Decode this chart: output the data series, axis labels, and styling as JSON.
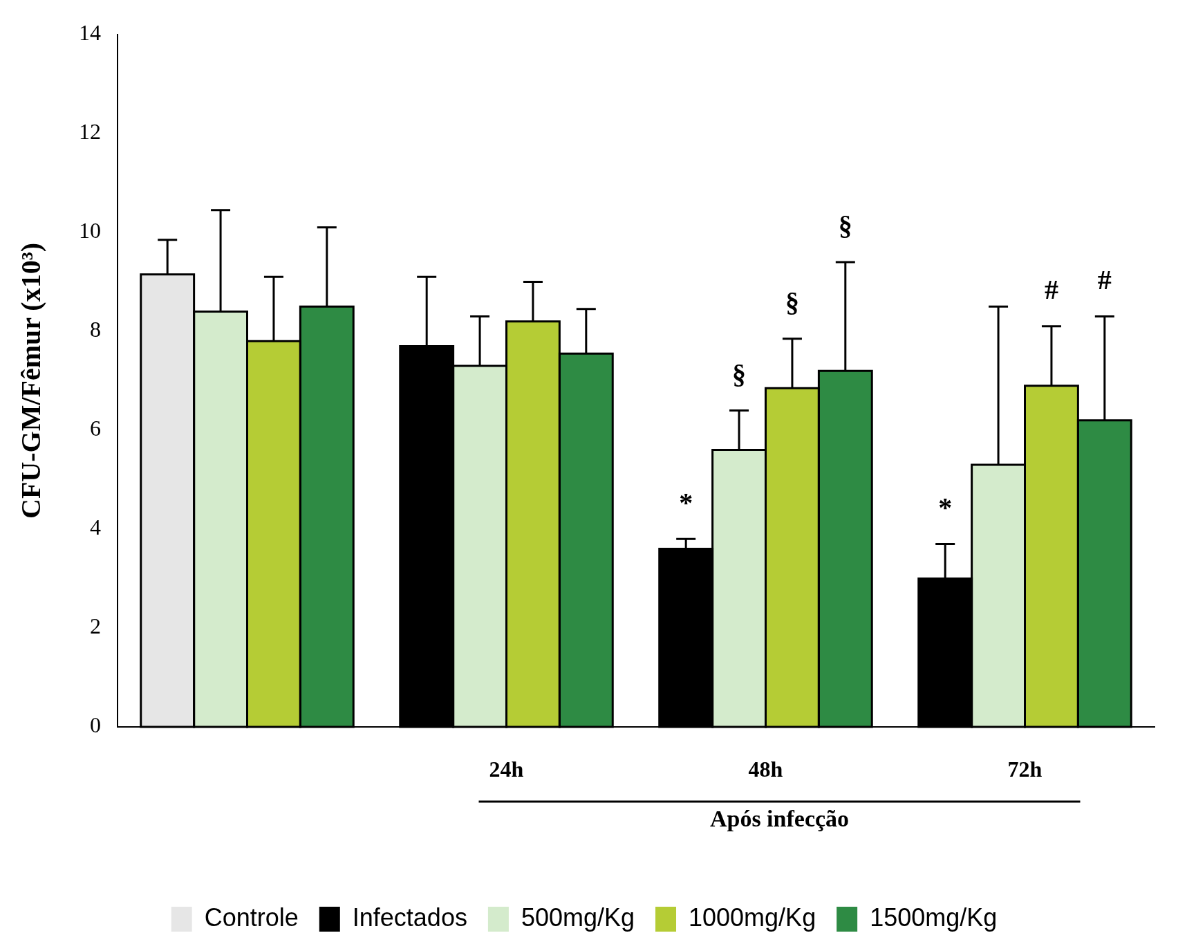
{
  "chart_data": {
    "type": "bar",
    "ylabel": "CFU-GM/Fêmur (x10³)",
    "xlabel": "Após infecção",
    "categories": [
      null,
      "24h",
      "48h",
      "72h"
    ],
    "series": [
      {
        "name": "Controle",
        "color": "#e6e6e6",
        "values": [
          9.15,
          null,
          null,
          null
        ],
        "errors": [
          0.7,
          null,
          null,
          null
        ]
      },
      {
        "name": "Infectados",
        "color": "#000000",
        "values": [
          null,
          7.7,
          3.6,
          3.0
        ],
        "errors": [
          null,
          1.4,
          0.2,
          0.7
        ]
      },
      {
        "name": "500mg/Kg",
        "color": "#d4ebcc",
        "values": [
          8.4,
          7.3,
          5.6,
          5.3
        ],
        "errors": [
          2.05,
          1.0,
          0.8,
          3.2
        ]
      },
      {
        "name": "1000mg/Kg",
        "color": "#b5cc35",
        "values": [
          7.8,
          8.2,
          6.85,
          6.9
        ],
        "errors": [
          1.3,
          0.8,
          1.0,
          1.2
        ]
      },
      {
        "name": "1500mg/Kg",
        "color": "#2e8b44",
        "values": [
          8.5,
          7.55,
          7.2,
          6.2
        ],
        "errors": [
          1.6,
          0.9,
          2.2,
          2.1
        ]
      }
    ],
    "ylim": [
      0,
      14
    ],
    "yticks": [
      0,
      2,
      4,
      6,
      8,
      10,
      12,
      14
    ],
    "grid": false,
    "legend": "bottom",
    "annotations": [
      {
        "text": "*",
        "x": "48h",
        "y": 3.6
      },
      {
        "text": "§",
        "x": "48h",
        "y": 5.6
      },
      {
        "text": "§",
        "x": "48h",
        "y": 6.85
      },
      "§",
      {
        "text": "*",
        "x": "72h",
        "y": 3.7
      },
      {
        "text": "#",
        "x": "72h",
        "y": 6.9
      },
      "#"
    ]
  }
}
